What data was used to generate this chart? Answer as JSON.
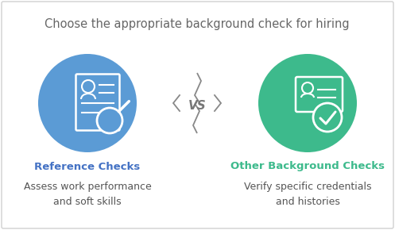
{
  "title": "Choose the appropriate background check for hiring",
  "title_color": "#666666",
  "title_fontsize": 10.5,
  "background_color": "#ffffff",
  "border_color": "#d0d0d0",
  "left_circle_color": "#5b9bd5",
  "right_circle_color": "#3dba8c",
  "left_label": "Reference Checks",
  "right_label": "Other Background Checks",
  "left_label_color": "#4472c4",
  "right_label_color": "#3dba8c",
  "label_fontsize": 9.5,
  "left_desc": "Assess work performance\nand soft skills",
  "right_desc": "Verify specific credentials\nand histories",
  "desc_color": "#555555",
  "desc_fontsize": 9,
  "vs_text": "<VS>",
  "vs_color": "#777777",
  "vs_fontsize": 11
}
